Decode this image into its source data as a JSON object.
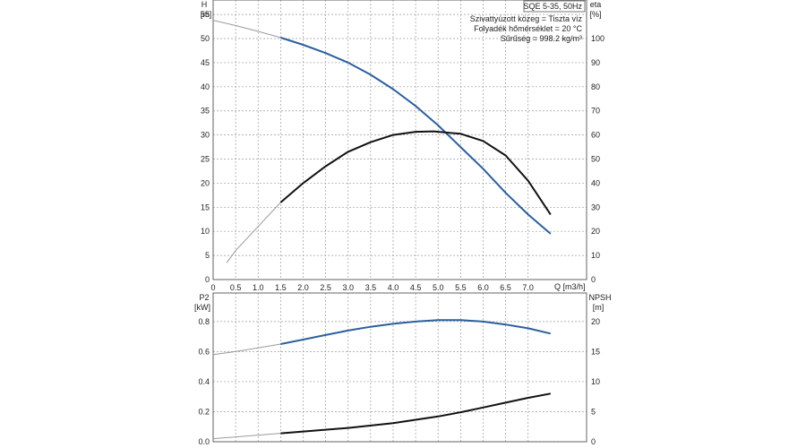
{
  "info_box": {
    "title": "SQE 5-35, 50Hz",
    "lines": [
      "Szivattyúzott közeg = Tiszta víz",
      "Folyadék hőmérséklet = 20 °C",
      "Sűrűség = 998.2 kg/m³"
    ]
  },
  "colors": {
    "head": "#2c5f9e",
    "power": "#2c5f9e",
    "efficiency": "#111111",
    "npsh": "#111111",
    "extrapolated": "#9a9a9a"
  },
  "chart_data": [
    {
      "type": "line",
      "xlabel": "Q [m3/h]",
      "xlim": [
        0,
        8.3
      ],
      "x_ticks": [
        "0",
        "0.5",
        "1.0",
        "1.5",
        "2.0",
        "2.5",
        "3.0",
        "3.5",
        "4.0",
        "4.5",
        "5.0",
        "5.5",
        "6.0",
        "6.5",
        "7.0"
      ],
      "y_left": {
        "label_top": "H",
        "label_unit": "[m]",
        "lim": [
          0,
          58
        ],
        "ticks": [
          "0",
          "5",
          "10",
          "15",
          "20",
          "25",
          "30",
          "35",
          "40",
          "45",
          "50",
          "55"
        ]
      },
      "y_right": {
        "label_top": "eta",
        "label_unit": "[%]",
        "lim": [
          0,
          116
        ],
        "ticks": [
          "0",
          "10",
          "20",
          "30",
          "40",
          "50",
          "60",
          "70",
          "80",
          "90",
          "100"
        ]
      },
      "series": [
        {
          "axis": "left",
          "operating_from": 1.5,
          "x": [
            0,
            0.5,
            1.0,
            1.5,
            2.0,
            2.5,
            3.0,
            3.5,
            4.0,
            4.5,
            5.0,
            5.5,
            6.0,
            6.5,
            7.0,
            7.5
          ],
          "values": [
            53.8,
            52.7,
            51.5,
            50.2,
            48.7,
            47.0,
            45.0,
            42.5,
            39.5,
            36.0,
            32.0,
            27.5,
            23.0,
            18.0,
            13.5,
            9.5
          ]
        },
        {
          "axis": "right",
          "operating_from": 1.5,
          "x": [
            0.3,
            0.5,
            1.0,
            1.5,
            2.0,
            2.5,
            3.0,
            3.5,
            4.0,
            4.5,
            4.9,
            5.5,
            6.0,
            6.5,
            7.0,
            7.5
          ],
          "values": [
            7,
            12,
            22,
            32,
            40,
            47,
            53,
            57,
            60,
            61.3,
            61.5,
            60.5,
            57.5,
            51.5,
            41,
            27
          ]
        }
      ]
    },
    {
      "type": "line",
      "xlim": [
        0,
        8.3
      ],
      "y_left": {
        "label_top": "P2",
        "label_unit": "[kW]",
        "lim": [
          0,
          0.99
        ],
        "ticks": [
          "0.0",
          "0.2",
          "0.4",
          "0.6",
          "0.8"
        ]
      },
      "y_right": {
        "label_top": "NPSH",
        "label_unit": "[m]",
        "lim": [
          0,
          24.75
        ],
        "ticks": [
          "0",
          "5",
          "10",
          "15",
          "20"
        ]
      },
      "series": [
        {
          "axis": "left",
          "operating_from": 1.5,
          "x": [
            0,
            0.5,
            1.0,
            1.5,
            2.0,
            2.5,
            3.0,
            3.5,
            4.0,
            4.5,
            5.0,
            5.5,
            6.0,
            6.5,
            7.0,
            7.5
          ],
          "values": [
            0.58,
            0.6,
            0.625,
            0.65,
            0.68,
            0.71,
            0.74,
            0.765,
            0.785,
            0.8,
            0.81,
            0.81,
            0.8,
            0.78,
            0.755,
            0.72
          ]
        },
        {
          "axis": "right",
          "operating_from": 1.5,
          "x": [
            0,
            1.0,
            1.5,
            2.0,
            3.0,
            4.0,
            5.0,
            5.5,
            6.0,
            6.5,
            7.0,
            7.5
          ],
          "values": [
            0.5,
            1.1,
            1.4,
            1.7,
            2.3,
            3.1,
            4.2,
            4.9,
            5.7,
            6.5,
            7.3,
            8.0
          ]
        }
      ]
    }
  ]
}
